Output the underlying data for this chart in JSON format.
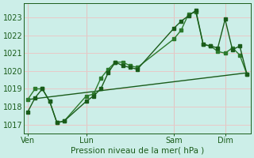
{
  "title": "Pression niveau de la mer( hPa )",
  "background_color": "#cceee8",
  "grid_color": "#e8c8c8",
  "line_color_dark": "#1a5c1a",
  "line_color_mid": "#2d7a2d",
  "ylim": [
    1016.5,
    1023.8
  ],
  "yticks": [
    1017,
    1018,
    1019,
    1020,
    1021,
    1022,
    1023
  ],
  "xtick_labels": [
    "Ven",
    "Lun",
    "Sam",
    "Dim"
  ],
  "xtick_positions": [
    0,
    8,
    20,
    27
  ],
  "vline_positions": [
    0,
    8,
    20,
    27
  ],
  "series1_x": [
    0,
    1,
    2,
    3,
    4,
    5,
    8,
    9,
    10,
    11,
    12,
    13,
    14,
    15,
    20,
    21,
    22,
    23,
    24,
    25,
    26,
    27,
    28,
    29,
    30
  ],
  "series1": [
    1017.7,
    1018.5,
    1019.0,
    1018.3,
    1017.1,
    1017.2,
    1018.3,
    1018.6,
    1019.0,
    1019.9,
    1020.5,
    1020.3,
    1020.2,
    1020.1,
    1022.4,
    1022.8,
    1023.1,
    1023.4,
    1021.5,
    1021.4,
    1021.3,
    1022.9,
    1021.2,
    1021.4,
    1019.8
  ],
  "series2_x": [
    0,
    1,
    2,
    3,
    4,
    5,
    8,
    9,
    10,
    11,
    12,
    13,
    14,
    15,
    20,
    21,
    22,
    23,
    24,
    25,
    26,
    27,
    28,
    29,
    30
  ],
  "series2": [
    1018.4,
    1019.0,
    1019.0,
    1018.3,
    1017.1,
    1017.2,
    1018.6,
    1018.7,
    1019.6,
    1020.1,
    1020.5,
    1020.5,
    1020.3,
    1020.2,
    1021.8,
    1022.3,
    1023.2,
    1023.3,
    1021.5,
    1021.4,
    1021.1,
    1021.0,
    1021.3,
    1020.9,
    1019.8
  ],
  "series3_x": [
    0,
    30
  ],
  "series3": [
    1018.4,
    1019.9
  ],
  "xlim": [
    -0.5,
    30.5
  ]
}
